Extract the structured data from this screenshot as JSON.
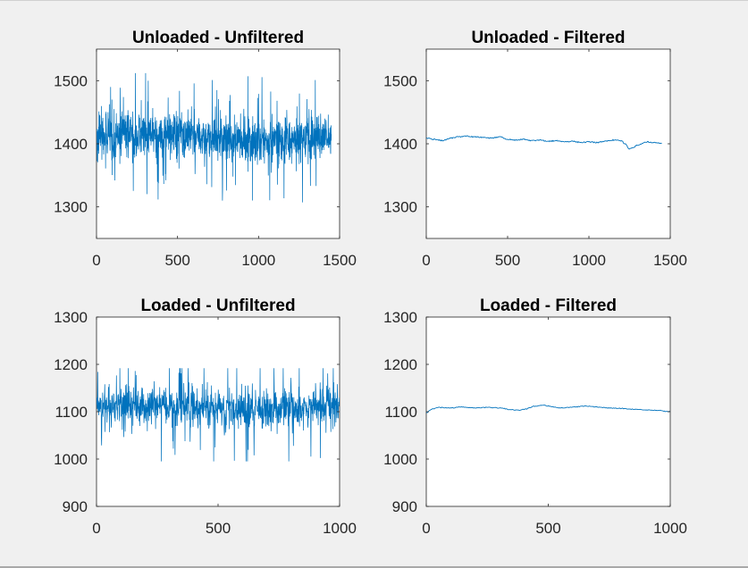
{
  "colors": {
    "line": "#0072BD",
    "axis": "#262626",
    "background": "#f0f0f0"
  },
  "chart_data": [
    {
      "type": "line",
      "title": "Unloaded - Unfiltered",
      "xlim": [
        0,
        1500
      ],
      "ylim": [
        1250,
        1550
      ],
      "xticks": [
        0,
        500,
        1000,
        1500
      ],
      "yticks": [
        1300,
        1400,
        1500
      ],
      "grid": false,
      "series": [
        {
          "n": 1450,
          "mean": 1410,
          "noise_amplitude": 32,
          "min": 1295,
          "max": 1512,
          "kind": "noisy"
        }
      ]
    },
    {
      "type": "line",
      "title": "Unloaded - Filtered",
      "xlim": [
        0,
        1500
      ],
      "ylim": [
        1250,
        1550
      ],
      "xticks": [
        0,
        500,
        1000,
        1500
      ],
      "yticks": [
        1300,
        1400,
        1500
      ],
      "grid": false,
      "series": [
        {
          "kind": "smooth",
          "x": [
            0,
            50,
            100,
            150,
            200,
            250,
            300,
            350,
            400,
            450,
            500,
            550,
            600,
            650,
            700,
            750,
            800,
            850,
            900,
            950,
            1000,
            1050,
            1100,
            1150,
            1200,
            1220,
            1250,
            1270,
            1300,
            1350,
            1400,
            1450
          ],
          "y": [
            1409,
            1407,
            1405,
            1409,
            1411,
            1412,
            1411,
            1410,
            1409,
            1411,
            1407,
            1406,
            1407,
            1405,
            1406,
            1404,
            1405,
            1403,
            1404,
            1402,
            1403,
            1402,
            1404,
            1406,
            1405,
            1400,
            1392,
            1394,
            1398,
            1403,
            1402,
            1401
          ]
        }
      ]
    },
    {
      "type": "line",
      "title": "Loaded - Unfiltered",
      "xlim": [
        0,
        1000
      ],
      "ylim": [
        900,
        1300
      ],
      "xticks": [
        0,
        500,
        1000
      ],
      "yticks": [
        900,
        1000,
        1100,
        1200,
        1300
      ],
      "grid": false,
      "series": [
        {
          "n": 1000,
          "mean": 1110,
          "noise_amplitude": 38,
          "min": 995,
          "max": 1192,
          "kind": "noisy"
        }
      ]
    },
    {
      "type": "line",
      "title": "Loaded - Filtered",
      "xlim": [
        0,
        1000
      ],
      "ylim": [
        900,
        1300
      ],
      "xticks": [
        0,
        500,
        1000
      ],
      "yticks": [
        900,
        1000,
        1100,
        1200,
        1300
      ],
      "grid": false,
      "series": [
        {
          "kind": "smooth",
          "x": [
            0,
            25,
            50,
            100,
            150,
            200,
            250,
            300,
            350,
            380,
            400,
            450,
            480,
            500,
            550,
            600,
            650,
            700,
            750,
            800,
            850,
            900,
            950,
            1000
          ],
          "y": [
            1098,
            1106,
            1109,
            1108,
            1110,
            1108,
            1109,
            1108,
            1104,
            1103,
            1105,
            1112,
            1114,
            1112,
            1108,
            1110,
            1112,
            1110,
            1108,
            1107,
            1105,
            1104,
            1103,
            1100
          ]
        }
      ]
    }
  ]
}
